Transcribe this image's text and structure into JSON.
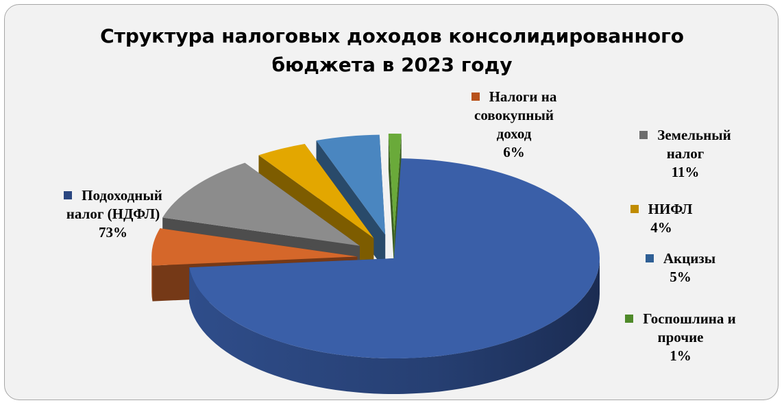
{
  "chart_data": {
    "type": "pie",
    "title": "Структура налоговых доходов консолидированного бюджета в 2023 году",
    "title_lines": [
      "Структура налоговых доходов консолидированного",
      "бюджета в 2023 году"
    ],
    "slices": [
      {
        "name_lines": [
          "Подоходный",
          "налог (НДФЛ)"
        ],
        "pct_label": "73%",
        "value": 73,
        "color": "#3a5fa8"
      },
      {
        "name_lines": [
          "Налоги на",
          "совокупный",
          "доход"
        ],
        "pct_label": "6%",
        "value": 6,
        "color": "#d5672a"
      },
      {
        "name_lines": [
          "Земельный",
          "налог"
        ],
        "pct_label": "11%",
        "value": 11,
        "color": "#8c8c8c"
      },
      {
        "name_lines": [
          "НИФЛ"
        ],
        "pct_label": "4%",
        "value": 4,
        "color": "#e3a700"
      },
      {
        "name_lines": [
          "Акцизы"
        ],
        "pct_label": "5%",
        "value": 5,
        "color": "#4a86c0"
      },
      {
        "name_lines": [
          "Госпошлина и",
          "прочие"
        ],
        "pct_label": "1%",
        "value": 1,
        "color": "#6aaa3a"
      }
    ],
    "legend": "data-labels",
    "style": "3d-exploded"
  }
}
